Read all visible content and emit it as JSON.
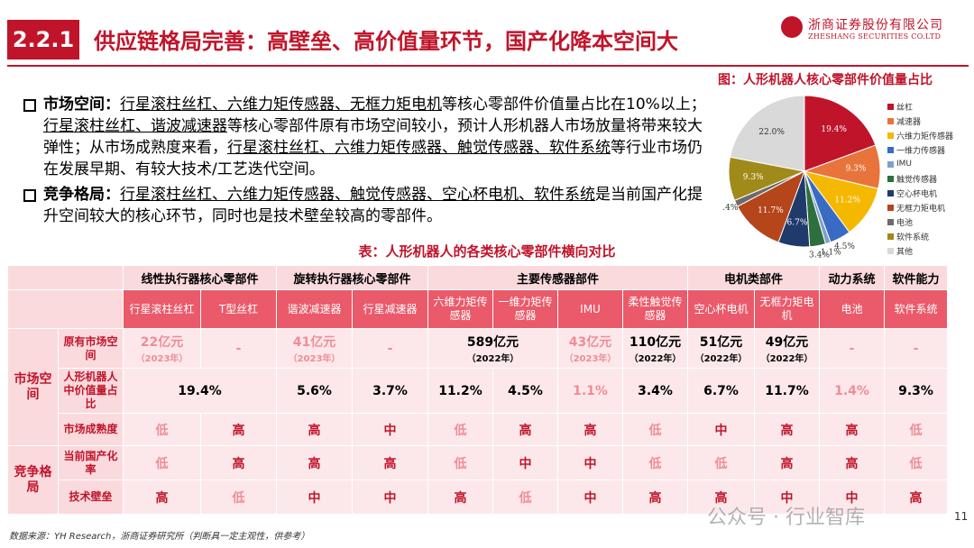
{
  "header": {
    "section_number": "2.2.1",
    "title": "供应链格局完善：高壁垒、高价值量环节，国产化降本空间大",
    "logo_cn": "浙商证券股份有限公司",
    "logo_en": "ZHESHANG SECURITIES CO.LTD"
  },
  "bullets": {
    "b1_head": "市场空间：",
    "b1_s1": "行星滚柱丝杠、六维力矩传感器、无框力矩电机",
    "b1_s2": "等核心零部件价值量占比在10%以上；",
    "b1_s3": "行星滚柱丝杠、谐波减速器",
    "b1_s4": "等核心零部件原有市场空间较小，预计人形机器人市场放量将带来较大弹性；从市场成熟度来看，",
    "b1_s5": "行星滚柱丝杠、六维力矩传感器、触觉传感器、软件系统",
    "b1_s6": "等行业市场仍在发展早期、有较大技术/工艺迭代空间。",
    "b2_head": "竞争格局：",
    "b2_s1": "行星滚柱丝杠、六维力矩传感器、触觉传感器、空心杯电机、软件系统",
    "b2_s2": "是当前国产化提升空间较大的核心环节，同时也是技术壁垒较高的零部件。"
  },
  "pie": {
    "title": "图：人形机器人核心零部件价值量占比",
    "labels": [
      "丝杠",
      "减速器",
      "六维力矩传感器",
      "一维力传感器",
      "IMU",
      "触觉传感器",
      "空心杯电机",
      "无框力矩电机",
      "电池",
      "软件系统",
      "其他"
    ],
    "values": [
      19.4,
      9.3,
      11.2,
      4.5,
      1.1,
      3.4,
      6.7,
      11.7,
      1.4,
      9.3,
      22.0
    ],
    "value_labels": [
      "19.4%",
      "9.3%",
      "11.2%",
      "4.5%",
      "1.1%",
      "3.4%",
      "6.7%",
      "11.7%",
      "1.4%",
      "9.3%",
      "22.0%"
    ],
    "colors": [
      "#c0142a",
      "#e8743b",
      "#f5b800",
      "#3a6bc4",
      "#7fa0c8",
      "#2e6f3e",
      "#1f3a6b",
      "#b5451b",
      "#6b6b6b",
      "#a08a1a",
      "#d9d9d9"
    ]
  },
  "table": {
    "title": "表：人形机器人的各类核心零部件横向对比",
    "groups": [
      "线性执行器核心零部件",
      "旋转执行器核心零部件",
      "主要传感器部件",
      "电机类部件",
      "动力系统",
      "软件能力"
    ],
    "items": [
      "行星滚柱丝杠",
      "T型丝杠",
      "谐波减速器",
      "行星减速器",
      "六维力矩传感器",
      "一维力矩传感器",
      "IMU",
      "柔性触觉传感器",
      "空心杯电机",
      "无框力矩电机",
      "电池",
      "软件系统"
    ],
    "section_market": "市场空间",
    "section_compete": "竞争格局",
    "row_labels": [
      "原有市场空间",
      "人形机器人中价值量占比",
      "市场成熟度",
      "当前国产化率",
      "技术壁垒"
    ],
    "market_space": [
      {
        "v": "22亿元",
        "y": "（2023年）"
      },
      {
        "v": "-",
        "y": ""
      },
      {
        "v": "41亿元",
        "y": "（2023年）"
      },
      {
        "v": "-",
        "y": ""
      },
      {
        "v": "589亿元",
        "y": "（2022年）"
      },
      {
        "v": "",
        "y": ""
      },
      {
        "v": "43亿元",
        "y": "（2023年）"
      },
      {
        "v": "110亿元",
        "y": "（2022年）"
      },
      {
        "v": "51亿元",
        "y": "（2022年）"
      },
      {
        "v": "49亿元",
        "y": "（2022年）"
      },
      {
        "v": "-",
        "y": ""
      },
      {
        "v": "-",
        "y": ""
      }
    ],
    "value_share": [
      "19.4%",
      "5.6%",
      "3.7%",
      "11.2%",
      "4.5%",
      "1.1%",
      "3.4%",
      "6.7%",
      "11.7%",
      "1.4%",
      "9.3%"
    ],
    "maturity": [
      "低",
      "高",
      "高",
      "中",
      "低",
      "高",
      "高",
      "低",
      "中",
      "高",
      "高",
      "低"
    ],
    "localization": [
      "低",
      "高",
      "高",
      "高",
      "低",
      "中",
      "中",
      "低",
      "低",
      "高",
      "高",
      "低"
    ],
    "barrier": [
      "高",
      "低",
      "中",
      "中",
      "高",
      "低",
      "中",
      "高",
      "高",
      "中",
      "中",
      "高"
    ]
  },
  "footer": {
    "source": "数据来源：YH Research，浙商证券研究所（判断具一定主观性，供参考）",
    "page": "11",
    "watermark": "公众号 · 行业智库"
  }
}
